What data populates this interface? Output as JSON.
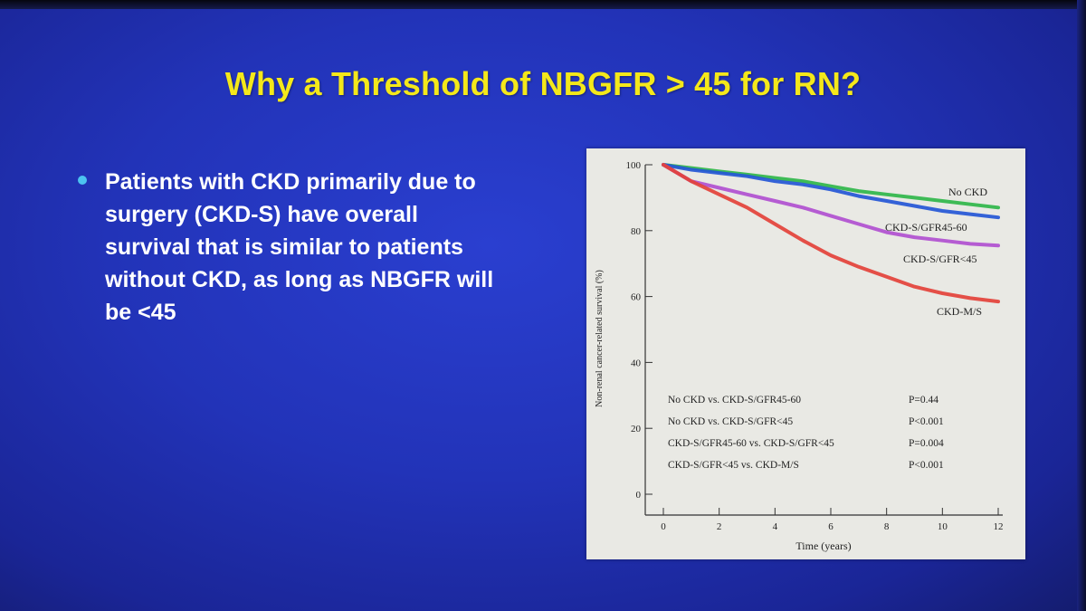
{
  "slide": {
    "title": "Why a Threshold of NBGFR > 45 for RN?",
    "bullet": "Patients with CKD primarily due to surgery (CKD-S) have overall survival that is similar to patients without CKD, as long as NBGFR will be <45",
    "colors": {
      "background": "#2233b8",
      "title": "#f4e81a",
      "bullet_dot": "#4cc3f0",
      "text": "#ffffff"
    }
  },
  "chart_data": {
    "type": "line",
    "xlabel": "Time (years)",
    "ylabel": "Non-renal cancer-related survival (%)",
    "xlim": [
      0,
      12
    ],
    "ylim": [
      0,
      100
    ],
    "x_ticks": [
      0,
      2,
      4,
      6,
      8,
      10,
      12
    ],
    "y_ticks": [
      0,
      20,
      40,
      60,
      80,
      100
    ],
    "x": [
      0,
      1,
      2,
      3,
      4,
      5,
      6,
      7,
      8,
      9,
      10,
      11,
      12
    ],
    "series": [
      {
        "name": "No CKD",
        "color": "#2fb64a",
        "values": [
          100,
          99,
          98,
          97,
          96,
          95,
          93.5,
          92,
          91,
          90,
          89,
          88,
          87
        ]
      },
      {
        "name": "CKD-S/GFR45-60",
        "color": "#2456d6",
        "values": [
          100,
          98.5,
          97.5,
          96.5,
          95,
          94,
          92.5,
          90.5,
          89,
          87.5,
          86,
          85,
          84
        ]
      },
      {
        "name": "CKD-S/GFR<45",
        "color": "#b04fd0",
        "values": [
          100,
          95,
          93,
          91,
          89,
          87,
          84.5,
          82,
          79.5,
          78,
          77,
          76,
          75.5
        ]
      },
      {
        "name": "CKD-M/S",
        "color": "#e3413a",
        "values": [
          100,
          95,
          91,
          87,
          82,
          77,
          72.5,
          69,
          66,
          63,
          61,
          59.5,
          58.5
        ]
      }
    ],
    "annotations": [
      {
        "comparison": "No CKD vs. CKD-S/GFR45-60",
        "p": "P=0.44"
      },
      {
        "comparison": "No CKD vs. CKD-S/GFR<45",
        "p": "P<0.001"
      },
      {
        "comparison": "CKD-S/GFR45-60 vs. CKD-S/GFR<45",
        "p": "P=0.004"
      },
      {
        "comparison": "CKD-S/GFR<45 vs. CKD-M/S",
        "p": "P<0.001"
      }
    ],
    "grid": false
  }
}
